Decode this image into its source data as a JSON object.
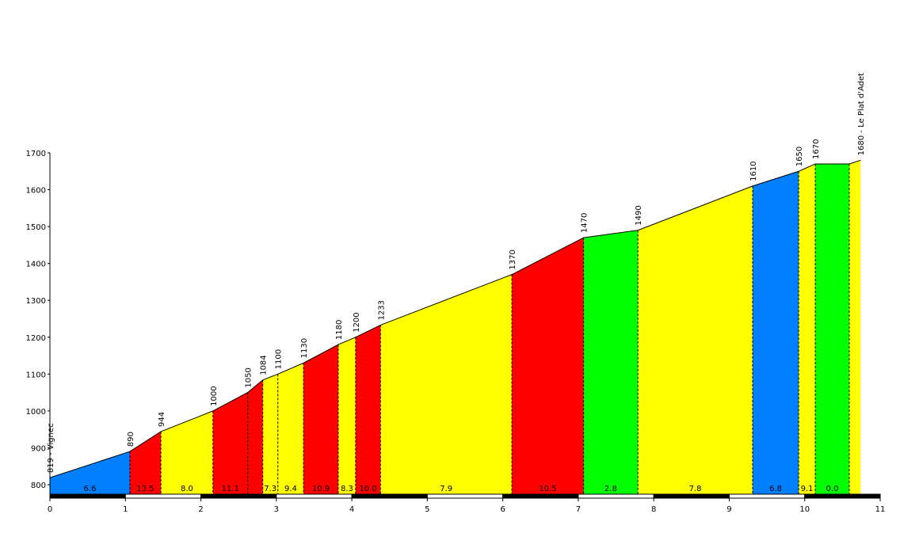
{
  "chart_data": {
    "type": "area",
    "title": "",
    "xlabel": "",
    "ylabel": "",
    "xlim": [
      0,
      11
    ],
    "ylim": [
      775,
      1700
    ],
    "x_ticks": [
      "0",
      "1",
      "2",
      "3",
      "4",
      "5",
      "6",
      "7",
      "8",
      "9",
      "10",
      "11"
    ],
    "y_ticks": [
      "800",
      "900",
      "1000",
      "1100",
      "1200",
      "1300",
      "1400",
      "1500",
      "1600",
      "1700"
    ],
    "points": [
      {
        "x": 0.0,
        "y": 819,
        "label": "819 - Vignec"
      },
      {
        "x": 1.06,
        "y": 890,
        "label": "890"
      },
      {
        "x": 1.47,
        "y": 944,
        "label": "944"
      },
      {
        "x": 2.16,
        "y": 1000,
        "label": "1000"
      },
      {
        "x": 2.62,
        "y": 1050,
        "label": "1050"
      },
      {
        "x": 2.82,
        "y": 1084,
        "label": "1084"
      },
      {
        "x": 3.02,
        "y": 1100,
        "label": "1100"
      },
      {
        "x": 3.36,
        "y": 1130,
        "label": "1130"
      },
      {
        "x": 3.82,
        "y": 1180,
        "label": "1180"
      },
      {
        "x": 4.05,
        "y": 1200,
        "label": "1200"
      },
      {
        "x": 4.38,
        "y": 1233,
        "label": "1233"
      },
      {
        "x": 6.12,
        "y": 1370,
        "label": "1370"
      },
      {
        "x": 7.07,
        "y": 1470,
        "label": "1470"
      },
      {
        "x": 7.79,
        "y": 1490,
        "label": "1490"
      },
      {
        "x": 9.31,
        "y": 1610,
        "label": "1610"
      },
      {
        "x": 9.92,
        "y": 1650,
        "label": "1650"
      },
      {
        "x": 10.14,
        "y": 1670,
        "label": "1670"
      },
      {
        "x": 10.59,
        "y": 1670,
        "label": ""
      },
      {
        "x": 10.74,
        "y": 1680,
        "label": "1680 - Le Plat d'Adet"
      }
    ],
    "segments": [
      {
        "gradient": "6.6",
        "color": "#0080ff"
      },
      {
        "gradient": "13.5",
        "color": "#ff0000"
      },
      {
        "gradient": "8.0",
        "color": "#ffff00"
      },
      {
        "gradient": "11.1",
        "color": "#ff0000"
      },
      {
        "gradient": "",
        "color": "#ff0000"
      },
      {
        "gradient": "7.3",
        "color": "#ffff00"
      },
      {
        "gradient": "9.4",
        "color": "#ffff00"
      },
      {
        "gradient": "10.9",
        "color": "#ff0000"
      },
      {
        "gradient": "8.3",
        "color": "#ffff00"
      },
      {
        "gradient": "10.0",
        "color": "#ff0000"
      },
      {
        "gradient": "7.9",
        "color": "#ffff00"
      },
      {
        "gradient": "10.5",
        "color": "#ff0000"
      },
      {
        "gradient": "2.8",
        "color": "#00ff00"
      },
      {
        "gradient": "7.8",
        "color": "#ffff00"
      },
      {
        "gradient": "6.8",
        "color": "#0080ff"
      },
      {
        "gradient": "9.1",
        "color": "#ffff00"
      },
      {
        "gradient": "0.0",
        "color": "#00ff00"
      },
      {
        "gradient": "",
        "color": "#ffff00"
      }
    ],
    "grid": false,
    "legend": "none"
  }
}
